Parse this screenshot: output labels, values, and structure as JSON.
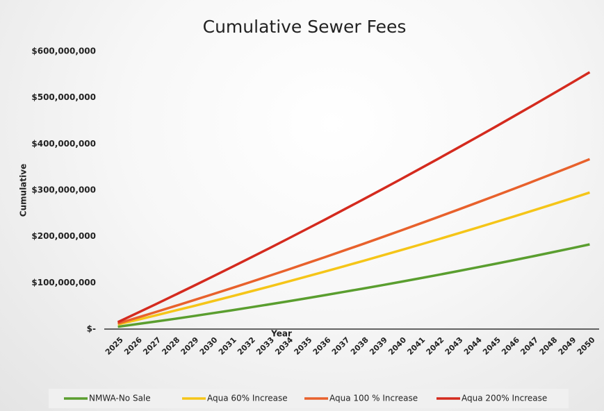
{
  "chart_data": {
    "type": "line",
    "title": "Cumulative Sewer Fees",
    "x_label": "Year",
    "y_label": "Cumulative",
    "categories": [
      "2025",
      "2026",
      "2027",
      "2028",
      "2029",
      "2030",
      "2031",
      "2032",
      "2033",
      "2034",
      "2035",
      "2036",
      "2037",
      "2038",
      "2039",
      "2040",
      "2041",
      "2042",
      "2043",
      "2044",
      "2045",
      "2046",
      "2047",
      "2048",
      "2049",
      "2050"
    ],
    "series": [
      {
        "name": "NMWA-No Sale",
        "color": "#5a9e2f",
        "values": [
          5000000,
          10600000,
          16300000,
          22100000,
          28100000,
          34200000,
          40400000,
          46800000,
          53300000,
          59900000,
          66600000,
          73500000,
          80500000,
          87600000,
          94800000,
          102200000,
          109700000,
          117300000,
          125100000,
          133000000,
          141000000,
          149100000,
          157400000,
          165800000,
          174300000,
          183000000
        ]
      },
      {
        "name": "Aqua 60% Increase",
        "color": "#f5c518",
        "values": [
          10000000,
          19700000,
          29600000,
          39600000,
          49700000,
          60000000,
          70400000,
          81000000,
          91700000,
          102500000,
          113500000,
          124600000,
          135900000,
          147300000,
          158800000,
          170500000,
          182300000,
          194300000,
          206400000,
          218600000,
          231000000,
          243500000,
          256200000,
          269000000,
          281900000,
          295000000
        ]
      },
      {
        "name": "Aqua 100 % Increase",
        "color": "#e8612c",
        "values": [
          12000000,
          24300000,
          36700000,
          49300000,
          62100000,
          75000000,
          88100000,
          101300000,
          114700000,
          128300000,
          142000000,
          155900000,
          169900000,
          184100000,
          198500000,
          213000000,
          227700000,
          242500000,
          257500000,
          272700000,
          288000000,
          303500000,
          319100000,
          334900000,
          350900000,
          367000000
        ]
      },
      {
        "name": "Aqua 200% Increase",
        "color": "#d42a1e",
        "values": [
          15000000,
          34200000,
          53600000,
          73200000,
          93000000,
          113000000,
          133200000,
          153600000,
          174200000,
          195000000,
          216000000,
          237200000,
          258600000,
          280200000,
          302000000,
          324000000,
          346200000,
          368600000,
          391200000,
          414000000,
          437000000,
          460200000,
          483600000,
          507200000,
          531000000,
          555000000
        ]
      }
    ],
    "ylim": [
      0,
      600000000
    ],
    "yticks": [
      {
        "value": 0,
        "label": "$-"
      },
      {
        "value": 100000000,
        "label": "$100,000,000"
      },
      {
        "value": 200000000,
        "label": "$200,000,000"
      },
      {
        "value": 300000000,
        "label": "$300,000,000"
      },
      {
        "value": 400000000,
        "label": "$400,000,000"
      },
      {
        "value": 500000000,
        "label": "$500,000,000"
      },
      {
        "value": 600000000,
        "label": "$600,000,000"
      }
    ],
    "legend": "bottom"
  }
}
